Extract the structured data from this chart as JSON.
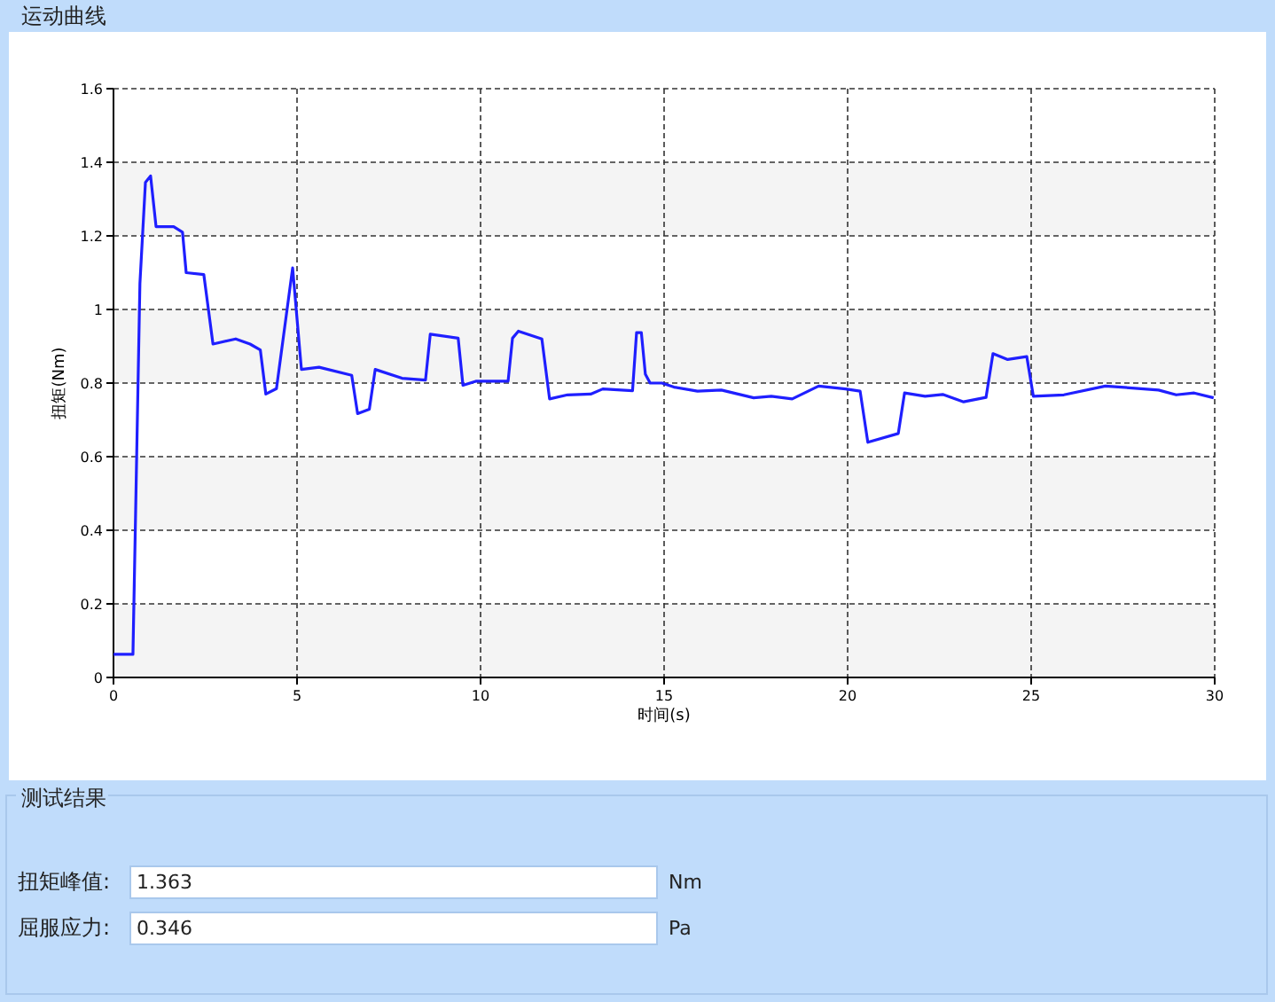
{
  "chart_data": {
    "type": "line",
    "title": "运动曲线",
    "xlabel": "时间(s)",
    "ylabel": "扭矩(Nm)",
    "x": [
      0,
      0.53,
      0.72,
      0.87,
      1.01,
      1.16,
      1.64,
      1.88,
      1.98,
      2.46,
      2.71,
      3.33,
      3.72,
      4.0,
      4.15,
      4.44,
      4.88,
      5.12,
      5.6,
      6.49,
      6.65,
      6.97,
      7.13,
      7.86,
      8.5,
      8.63,
      9.39,
      9.52,
      9.87,
      10.75,
      10.87,
      11.03,
      11.67,
      11.88,
      12.37,
      13.0,
      13.33,
      14.14,
      14.25,
      14.38,
      14.49,
      14.62,
      14.94,
      15.27,
      15.91,
      16.56,
      17.44,
      17.92,
      18.49,
      19.21,
      19.94,
      20.34,
      20.55,
      21.38,
      21.55,
      22.11,
      22.59,
      23.16,
      23.77,
      23.96,
      24.36,
      24.88,
      25.06,
      25.89,
      27.02,
      27.83,
      28.47,
      28.95,
      29.44,
      29.97
    ],
    "series": [
      {
        "color": "#1f1fff",
        "values": [
          0.063,
          0.063,
          1.07,
          1.345,
          1.363,
          1.225,
          1.225,
          1.21,
          1.1,
          1.095,
          0.906,
          0.92,
          0.906,
          0.89,
          0.77,
          0.785,
          1.113,
          0.837,
          0.843,
          0.821,
          0.717,
          0.729,
          0.837,
          0.813,
          0.808,
          0.933,
          0.922,
          0.794,
          0.805,
          0.805,
          0.922,
          0.941,
          0.92,
          0.757,
          0.768,
          0.77,
          0.784,
          0.779,
          0.937,
          0.937,
          0.824,
          0.8,
          0.8,
          0.789,
          0.778,
          0.781,
          0.76,
          0.764,
          0.757,
          0.792,
          0.784,
          0.778,
          0.639,
          0.663,
          0.773,
          0.764,
          0.769,
          0.749,
          0.761,
          0.88,
          0.864,
          0.872,
          0.764,
          0.768,
          0.792,
          0.786,
          0.781,
          0.768,
          0.773,
          0.76
        ]
      }
    ],
    "xlim": [
      0,
      30
    ],
    "xticks": [
      0,
      5,
      10,
      15,
      20,
      25,
      30
    ],
    "ylim": [
      0,
      1.6
    ],
    "yticks": [
      0,
      0.2,
      0.4,
      0.6,
      0.8,
      1,
      1.2,
      1.4,
      1.6
    ],
    "grid": true,
    "marker": "none",
    "line_style": "solid",
    "annotations": [
      "测试结果",
      "扭矩峰值:",
      "1.363",
      "Nm",
      "屈服应力:",
      "0.346",
      "Pa"
    ]
  }
}
